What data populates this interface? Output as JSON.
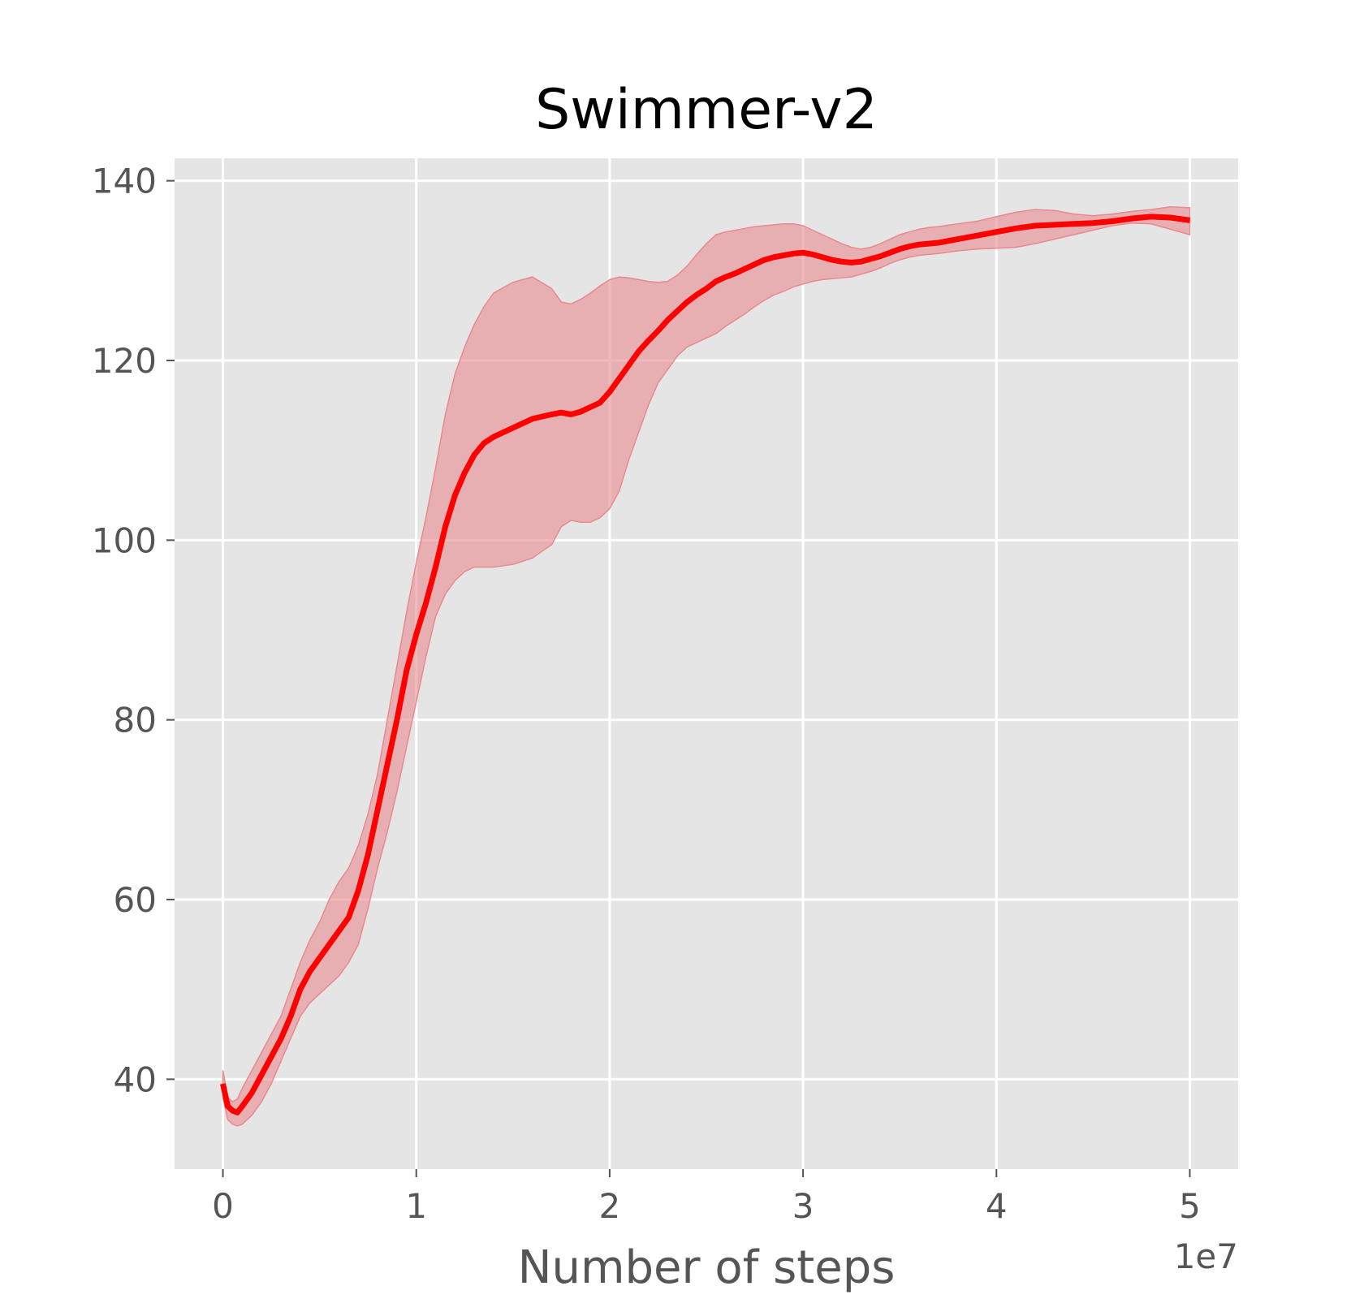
{
  "chart_data": {
    "type": "line",
    "title": "Swimmer-v2",
    "xlabel": "Number of steps",
    "ylabel": "",
    "x_offset_label": "1e7",
    "xlim": [
      -2500000,
      52500000
    ],
    "ylim": [
      30,
      142.5
    ],
    "x_ticks": [
      0,
      10000000,
      20000000,
      30000000,
      40000000,
      50000000
    ],
    "x_tick_labels": [
      "0",
      "1",
      "2",
      "3",
      "4",
      "5"
    ],
    "y_ticks": [
      40,
      60,
      80,
      100,
      120,
      140
    ],
    "y_tick_labels": [
      "40",
      "60",
      "80",
      "100",
      "120",
      "140"
    ],
    "grid": true,
    "background": "#e5e5e5",
    "series": [
      {
        "color": "#ff0000",
        "band_color": "#e88a8e",
        "x": [
          0,
          250000,
          500000,
          750000,
          1000000,
          1500000,
          2000000,
          2500000,
          3000000,
          3500000,
          4000000,
          4500000,
          5000000,
          5500000,
          6000000,
          6500000,
          7000000,
          7500000,
          8000000,
          8500000,
          9000000,
          9500000,
          10000000,
          10500000,
          11000000,
          11500000,
          12000000,
          12500000,
          13000000,
          13500000,
          14000000,
          15000000,
          16000000,
          17000000,
          17500000,
          18000000,
          18500000,
          19000000,
          19500000,
          20000000,
          20500000,
          21000000,
          21500000,
          22000000,
          22500000,
          23000000,
          23500000,
          24000000,
          24500000,
          25000000,
          25500000,
          26000000,
          26500000,
          27000000,
          27500000,
          28000000,
          28500000,
          29000000,
          29500000,
          30000000,
          30500000,
          31000000,
          31500000,
          32000000,
          32500000,
          33000000,
          33500000,
          34000000,
          34500000,
          35000000,
          35500000,
          36000000,
          36500000,
          37000000,
          38000000,
          39000000,
          40000000,
          41000000,
          42000000,
          43000000,
          44000000,
          45000000,
          46000000,
          47000000,
          48000000,
          49000000,
          50000000
        ],
        "y": [
          39.5,
          37.0,
          36.5,
          36.3,
          37.0,
          38.5,
          40.5,
          42.5,
          44.5,
          47.0,
          50.0,
          52.0,
          53.5,
          55.0,
          56.5,
          58.0,
          61.0,
          65.0,
          70.0,
          75.0,
          80.0,
          85.5,
          89.5,
          93.0,
          97.0,
          101.5,
          105.0,
          107.5,
          109.5,
          110.8,
          111.5,
          112.5,
          113.5,
          114.0,
          114.2,
          114.0,
          114.3,
          114.8,
          115.3,
          116.5,
          118.0,
          119.5,
          121.0,
          122.2,
          123.3,
          124.5,
          125.5,
          126.5,
          127.3,
          128.0,
          128.8,
          129.3,
          129.7,
          130.2,
          130.7,
          131.2,
          131.5,
          131.7,
          131.9,
          132.0,
          131.8,
          131.5,
          131.2,
          131.0,
          130.9,
          131.0,
          131.3,
          131.6,
          132.0,
          132.4,
          132.7,
          132.9,
          133.0,
          133.1,
          133.5,
          133.9,
          134.3,
          134.7,
          135.0,
          135.1,
          135.2,
          135.3,
          135.5,
          135.8,
          136.0,
          135.9,
          135.6
        ],
        "lower": [
          38.0,
          35.5,
          35.0,
          34.8,
          35.0,
          36.0,
          37.5,
          39.5,
          42.0,
          44.5,
          47.0,
          48.5,
          49.5,
          50.5,
          51.5,
          53.0,
          55.0,
          59.0,
          63.5,
          67.5,
          72.0,
          77.0,
          82.0,
          87.0,
          91.5,
          94.0,
          95.5,
          96.5,
          97.0,
          97.0,
          97.0,
          97.3,
          98.0,
          99.5,
          101.5,
          102.2,
          102.0,
          102.0,
          102.5,
          103.5,
          105.5,
          109.0,
          112.0,
          115.0,
          117.5,
          119.0,
          120.5,
          121.5,
          122.0,
          122.5,
          123.0,
          123.8,
          124.5,
          125.2,
          126.0,
          126.7,
          127.3,
          127.7,
          128.2,
          128.5,
          128.8,
          129.0,
          129.1,
          129.2,
          129.3,
          129.6,
          129.9,
          130.3,
          130.8,
          131.2,
          131.5,
          131.7,
          131.8,
          131.9,
          132.2,
          132.4,
          132.5,
          132.6,
          133.0,
          133.5,
          134.0,
          134.5,
          135.0,
          135.3,
          135.2,
          134.6,
          134.0
        ],
        "upper": [
          41.0,
          38.0,
          37.5,
          37.8,
          39.0,
          41.0,
          43.0,
          45.0,
          47.0,
          50.0,
          53.0,
          55.5,
          57.5,
          60.0,
          62.0,
          63.5,
          66.0,
          69.5,
          74.0,
          80.0,
          86.0,
          92.0,
          97.5,
          102.5,
          108.0,
          114.0,
          118.5,
          121.5,
          124.0,
          126.0,
          127.5,
          128.7,
          129.3,
          128.0,
          126.5,
          126.3,
          126.8,
          127.5,
          128.3,
          129.0,
          129.3,
          129.2,
          129.0,
          128.8,
          128.7,
          128.8,
          129.5,
          130.5,
          131.8,
          133.0,
          134.0,
          134.3,
          134.5,
          134.7,
          134.9,
          135.0,
          135.1,
          135.2,
          135.2,
          135.0,
          134.5,
          134.0,
          133.5,
          133.0,
          132.6,
          132.4,
          132.6,
          133.0,
          133.5,
          134.0,
          134.3,
          134.6,
          134.8,
          134.9,
          135.2,
          135.5,
          136.0,
          136.5,
          136.8,
          136.7,
          136.3,
          136.1,
          136.3,
          136.6,
          136.8,
          137.1,
          137.0
        ]
      }
    ]
  }
}
